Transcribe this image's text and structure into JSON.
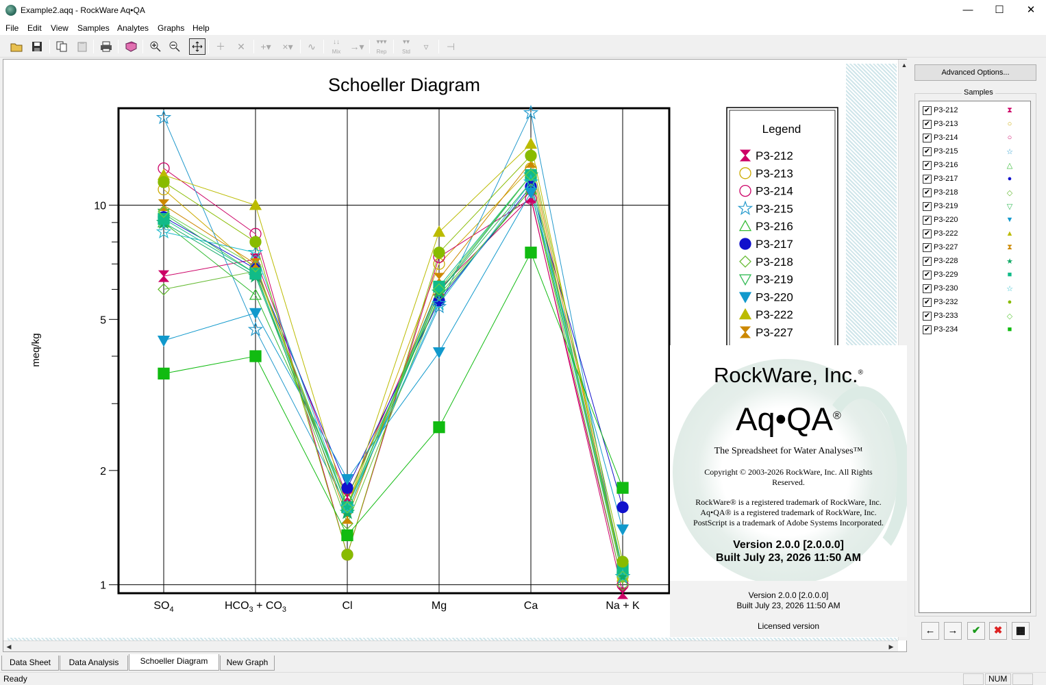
{
  "window": {
    "title": "Example2.aqq - RockWare Aq•QA",
    "minimize": "—",
    "maximize": "☐",
    "close": "✕"
  },
  "menu": [
    "File",
    "Edit",
    "View",
    "Samples",
    "Analytes",
    "Graphs",
    "Help"
  ],
  "toolbar": {
    "mix_label": "Mix",
    "rep_label": "Rep",
    "std_label": "Std"
  },
  "chart_data": {
    "type": "line",
    "title": "Schoeller Diagram",
    "ylabel": "meq/kg",
    "yscale": "log",
    "ylim": [
      0.95,
      18
    ],
    "yticks": [
      1,
      2,
      5,
      10
    ],
    "categories": [
      "SO4",
      "HCO3 + CO3",
      "Cl",
      "Mg",
      "Ca",
      "Na + K"
    ],
    "category_labels": [
      {
        "main": "SO",
        "sub": "4"
      },
      {
        "main": "HCO",
        "sub": "3",
        "mid": " + CO",
        "sub2": "3"
      },
      {
        "main": "Cl"
      },
      {
        "main": "Mg"
      },
      {
        "main": "Ca"
      },
      {
        "main": "Na + K"
      }
    ],
    "grid": true,
    "legend_position": "right",
    "series": [
      {
        "name": "P3-212",
        "color": "#cc0066",
        "marker": "hourglass",
        "values": [
          6.5,
          7.2,
          1.7,
          6.0,
          10.5,
          0.95
        ]
      },
      {
        "name": "P3-213",
        "color": "#ccaa00",
        "marker": "circle-open",
        "values": [
          11.0,
          6.8,
          1.6,
          7.0,
          12.5,
          1.05
        ]
      },
      {
        "name": "P3-214",
        "color": "#cc0066",
        "marker": "circle-open",
        "values": [
          12.5,
          8.4,
          1.2,
          7.3,
          10.4,
          1.0
        ]
      },
      {
        "name": "P3-215",
        "color": "#2299cc",
        "marker": "star-open",
        "values": [
          17.0,
          4.7,
          1.6,
          5.4,
          17.5,
          1.05
        ]
      },
      {
        "name": "P3-216",
        "color": "#33bb33",
        "marker": "triangle-open",
        "values": [
          9.0,
          5.8,
          1.7,
          5.7,
          11.0,
          1.1
        ]
      },
      {
        "name": "P3-217",
        "color": "#1111cc",
        "marker": "circle",
        "values": [
          9.3,
          6.8,
          1.8,
          5.6,
          11.2,
          1.6
        ]
      },
      {
        "name": "P3-218",
        "color": "#66bb33",
        "marker": "diamond-open",
        "values": [
          6.0,
          6.7,
          1.45,
          5.8,
          11.0,
          1.0
        ]
      },
      {
        "name": "P3-219",
        "color": "#33bb55",
        "marker": "triangle-down-open",
        "values": [
          9.5,
          6.6,
          1.6,
          5.9,
          11.5,
          1.05
        ]
      },
      {
        "name": "P3-220",
        "color": "#1199cc",
        "marker": "triangle-down",
        "values": [
          4.4,
          5.2,
          1.9,
          4.1,
          10.8,
          1.4
        ]
      },
      {
        "name": "P3-222",
        "color": "#bbbb00",
        "marker": "triangle",
        "values": [
          12.0,
          10.0,
          1.6,
          8.5,
          14.5,
          1.05
        ]
      },
      {
        "name": "P3-227",
        "color": "#cc8800",
        "marker": "hourglass",
        "values": [
          10.0,
          7.0,
          1.5,
          6.4,
          13.0,
          1.1
        ]
      },
      {
        "name": "P3-228",
        "color": "#11aa66",
        "marker": "star",
        "values": [
          9.0,
          6.5,
          1.55,
          5.9,
          12.0,
          1.05
        ]
      },
      {
        "name": "P3-229",
        "color": "#11bb88",
        "marker": "square",
        "values": [
          9.2,
          6.6,
          1.6,
          6.1,
          12.0,
          1.1
        ]
      },
      {
        "name": "P3-230",
        "color": "#22bbcc",
        "marker": "star-open",
        "values": [
          8.5,
          7.5,
          1.6,
          5.5,
          11.5,
          1.05
        ]
      },
      {
        "name": "P3-232",
        "color": "#88bb00",
        "marker": "circle",
        "values": [
          11.5,
          8.0,
          1.2,
          7.5,
          13.5,
          1.15
        ]
      },
      {
        "name": "P3-233",
        "color": "#66cc44",
        "marker": "diamond-open",
        "values": [
          9.6,
          6.9,
          1.6,
          6.0,
          12.0,
          1.05
        ]
      },
      {
        "name": "P3-234",
        "color": "#11bb11",
        "marker": "square",
        "values": [
          3.6,
          4.0,
          1.35,
          2.6,
          7.5,
          1.8
        ]
      }
    ],
    "legend_title": "Legend",
    "legend_visible_count": 11
  },
  "splash": {
    "company": "RockWare, Inc.",
    "product": "Aq•QA",
    "tagline": "The Spreadsheet for Water Analyses™",
    "copyright": "Copyright © 2003-2026 RockWare, Inc.  All Rights Reserved.",
    "trademark1": "RockWare® is a registered trademark of RockWare, Inc.",
    "trademark2": "Aq•QA® is a registered trademark of RockWare, Inc.",
    "trademark3": "PostScript is a trademark of Adobe Systems Incorporated.",
    "version_bold": "Version 2.0.0 [2.0.0.0]",
    "built_bold": "Built July 23, 2026 11:50 AM",
    "version": "Version 2.0.0 [2.0.0.0]",
    "built": "Built July 23, 2026 11:50 AM",
    "license": "Licensed version"
  },
  "right_panel": {
    "advanced_options": "Advanced Options...",
    "samples_title": "Samples",
    "samples": [
      {
        "label": "P3-212",
        "checked": "✔",
        "symbol": "⧗",
        "color": "#cc0066"
      },
      {
        "label": "P3-213",
        "checked": "✔",
        "symbol": "○",
        "color": "#ccaa00"
      },
      {
        "label": "P3-214",
        "checked": "✔",
        "symbol": "○",
        "color": "#cc0066"
      },
      {
        "label": "P3-215",
        "checked": "✔",
        "symbol": "☆",
        "color": "#2299cc"
      },
      {
        "label": "P3-216",
        "checked": "✔",
        "symbol": "△",
        "color": "#33bb33"
      },
      {
        "label": "P3-217",
        "checked": "✔",
        "symbol": "●",
        "color": "#1111cc"
      },
      {
        "label": "P3-218",
        "checked": "✔",
        "symbol": "◇",
        "color": "#66bb33"
      },
      {
        "label": "P3-219",
        "checked": "✔",
        "symbol": "▽",
        "color": "#33bb55"
      },
      {
        "label": "P3-220",
        "checked": "✔",
        "symbol": "▼",
        "color": "#1199cc"
      },
      {
        "label": "P3-222",
        "checked": "✔",
        "symbol": "▲",
        "color": "#bbbb00"
      },
      {
        "label": "P3-227",
        "checked": "✔",
        "symbol": "⧗",
        "color": "#cc8800"
      },
      {
        "label": "P3-228",
        "checked": "✔",
        "symbol": "★",
        "color": "#11aa66"
      },
      {
        "label": "P3-229",
        "checked": "✔",
        "symbol": "■",
        "color": "#11bb88"
      },
      {
        "label": "P3-230",
        "checked": "✔",
        "symbol": "☆",
        "color": "#22bbcc"
      },
      {
        "label": "P3-232",
        "checked": "✔",
        "symbol": "●",
        "color": "#88bb00"
      },
      {
        "label": "P3-233",
        "checked": "✔",
        "symbol": "◇",
        "color": "#66cc44"
      },
      {
        "label": "P3-234",
        "checked": "✔",
        "symbol": "■",
        "color": "#11bb11"
      }
    ],
    "buttons": {
      "prev": "←",
      "next": "→",
      "ok": "✔",
      "cancel": "✖",
      "grid": "▦"
    }
  },
  "tabs": [
    {
      "label": "Data Sheet",
      "active": false
    },
    {
      "label": "Data Analysis",
      "active": false
    },
    {
      "label": "Schoeller Diagram",
      "active": true
    },
    {
      "label": "New Graph",
      "active": false
    }
  ],
  "status": {
    "text": "Ready",
    "num": "NUM"
  }
}
